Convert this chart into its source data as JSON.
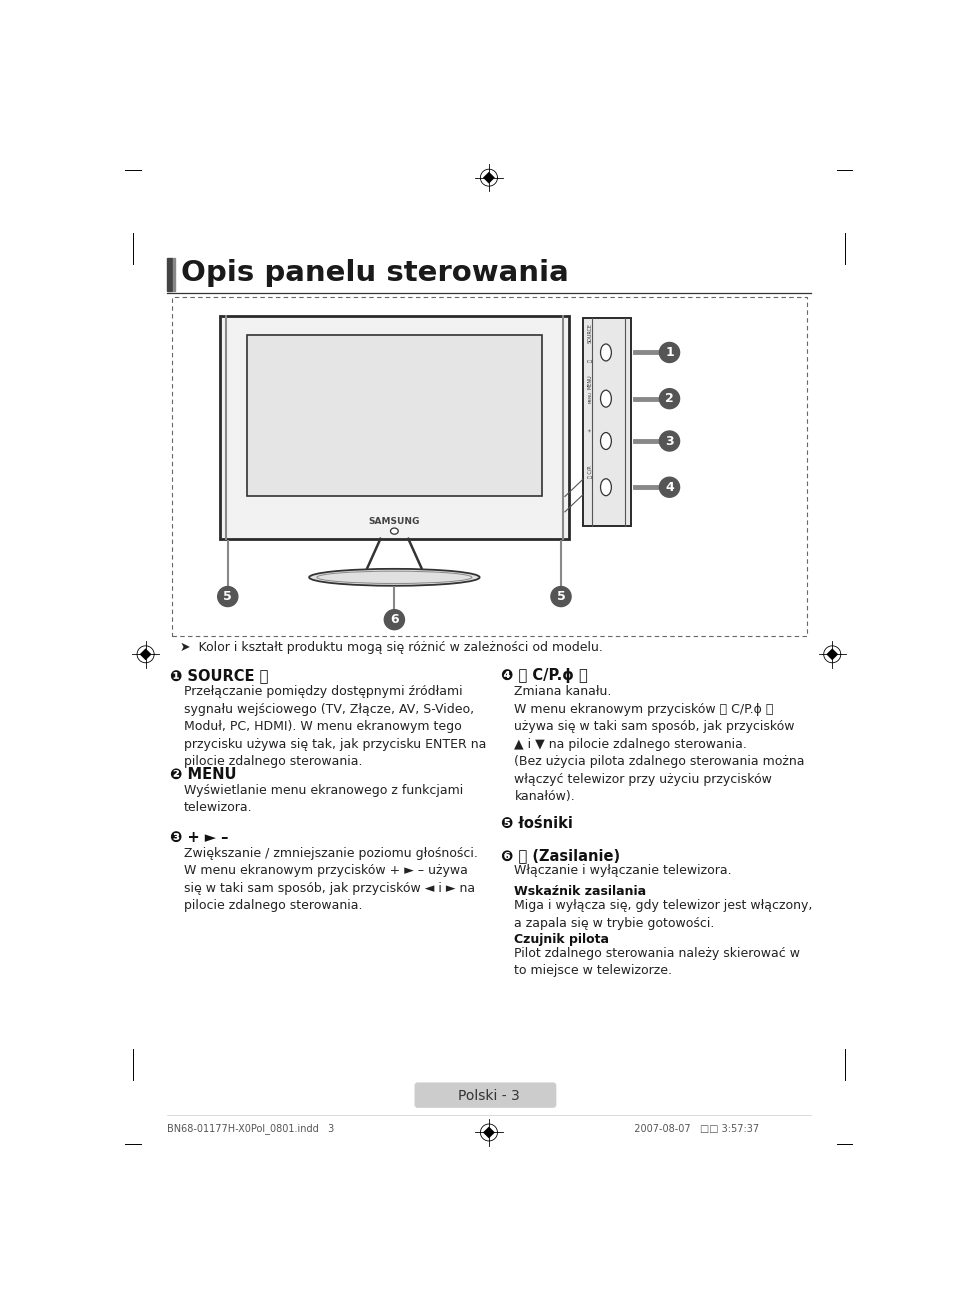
{
  "title": "Opis panelu sterowania",
  "bg": "#ffffff",
  "note": "> Kolor i kształt produktu mogą się różnić w zależności od modelu.",
  "s1_title": "❶ SOURCE ⍇",
  "s1_body": "Przełączanie pomiędzy dostępnymi źródłami\nsygnału wejściowego (TV, Złącze, AV, S-Video,\nModuł, PC, HDMI). W menu ekranowym tego\nprzycisku używa się tak, jak przycisku ENTER na\npilocie zdalnego sterowania.",
  "s2_title": "❷ MENU",
  "s2_body": "Wyświetlanie menu ekranowego z funkcjami\ntelewizora.",
  "s3_title": "❸ + ► –",
  "s3_body": "Zwiększanie / zmniejszanie poziomu głośności.\nW menu ekranowym przycisków + ► – używa\nsię w taki sam sposób, jak przycisków ◄ i ► na\npilocie zdalnego sterowania.",
  "s4_title": "❹ 〈 C/P.ϕ 〉",
  "s4_body": "Zmiana kanału.\nW menu ekranowym przycisków 〈 C/P.ϕ 〉\nużywa się w taki sam sposób, jak przycisków\n▲ i ▼ na pilocie zdalnego sterowania.\n(Bez użycia pilota zdalnego sterowania można\nwłączyć telewizor przy użyciu przycisków\nkanałów).",
  "s5_title": "❺ łośniki",
  "s6_title": "❻ ⏻ (Zasilanie)",
  "s6_body": "Włączanie i wyłączanie telewizora.",
  "s6_sub1": "Wskaźnik zasilania",
  "s6_sub1_body": "Miga i wyłącza się, gdy telewizor jest włączony,\na zapala się w trybie gotowości.",
  "s6_sub2": "Czujnik pilota",
  "s6_sub2_body": "Pilot zdalnego sterowania należy skierować w\nto miejsce w telewizorze.",
  "footer": "Polski - 3",
  "bottom": "BN68-01177H-X0Pol_0801.indd   3                                                                                                2007-08-07   □□ 3:57:37"
}
